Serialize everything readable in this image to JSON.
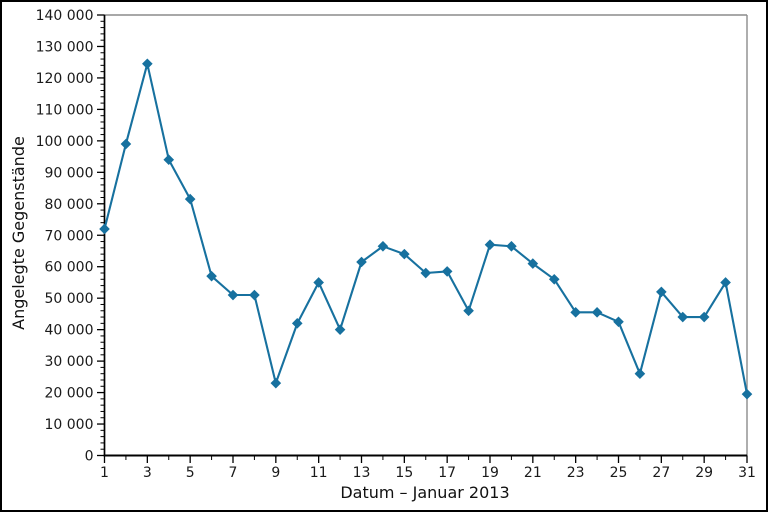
{
  "chart_data": {
    "type": "line",
    "title": "",
    "xlabel": "Datum – Januar 2013",
    "ylabel": "Angelegte Gegenstände",
    "x": [
      1,
      2,
      3,
      4,
      5,
      6,
      7,
      8,
      9,
      10,
      11,
      12,
      13,
      14,
      15,
      16,
      17,
      18,
      19,
      20,
      21,
      22,
      23,
      24,
      25,
      26,
      27,
      28,
      29,
      30,
      31
    ],
    "values": [
      72000,
      99000,
      124500,
      94000,
      81500,
      57000,
      51000,
      51000,
      23000,
      42000,
      55000,
      40000,
      61500,
      66500,
      64000,
      58000,
      58500,
      46000,
      67000,
      66500,
      61000,
      56000,
      45500,
      45500,
      42500,
      26000,
      52000,
      44000,
      44000,
      55000,
      19500
    ],
    "xlim": [
      1,
      31
    ],
    "ylim": [
      0,
      140000
    ],
    "x_major_ticks": [
      1,
      3,
      5,
      7,
      9,
      11,
      13,
      15,
      17,
      19,
      21,
      23,
      25,
      27,
      29,
      31
    ],
    "x_tick_labels": [
      "1",
      "3",
      "5",
      "7",
      "9",
      "11",
      "13",
      "15",
      "17",
      "19",
      "21",
      "23",
      "25",
      "27",
      "29",
      "31"
    ],
    "x_minor_tick_step": 1,
    "y_major_ticks": [
      0,
      10000,
      20000,
      30000,
      40000,
      50000,
      60000,
      70000,
      80000,
      90000,
      100000,
      110000,
      120000,
      130000,
      140000
    ],
    "y_tick_labels": [
      "0",
      "10 000",
      "20 000",
      "30 000",
      "40 000",
      "50 000",
      "60 000",
      "70 000",
      "80 000",
      "90 000",
      "100 000",
      "110 000",
      "120 000",
      "130 000",
      "140 000"
    ],
    "y_minor_tick_step": 2000,
    "grid": false,
    "legend": null,
    "marker": "diamond",
    "line_color": "#17719f",
    "marker_color": "#17719f",
    "axis_color": "#000000",
    "top_right_spine_color": "#8c8c8c",
    "tick_label_color": "#1a1a1a",
    "background_color": "#ffffff",
    "border_color": "#000000"
  }
}
